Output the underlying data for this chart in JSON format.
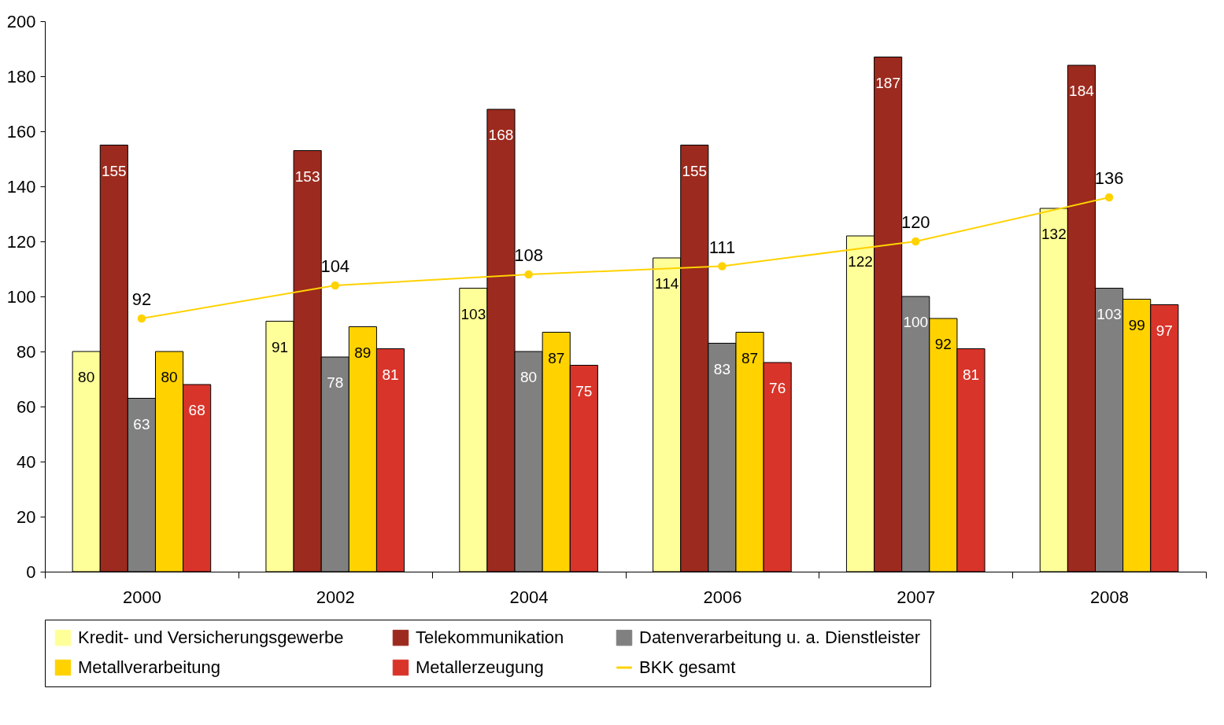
{
  "chart_data": {
    "type": "bar",
    "categories": [
      "2000",
      "2002",
      "2004",
      "2006",
      "2007",
      "2008"
    ],
    "series": [
      {
        "name": "Kredit- und Versicherungsgewerbe",
        "color": "#ffff99",
        "values": [
          80,
          91,
          103,
          114,
          122,
          132
        ]
      },
      {
        "name": "Telekommunikation",
        "color": "#9c2a1e",
        "values": [
          155,
          153,
          168,
          155,
          187,
          184
        ]
      },
      {
        "name": "Datenverarbeitung u. a. Dienstleister",
        "color": "#808080",
        "values": [
          63,
          78,
          80,
          83,
          100,
          103
        ]
      },
      {
        "name": "Metallverarbeitung",
        "color": "#ffd200",
        "values": [
          80,
          89,
          87,
          87,
          92,
          99
        ]
      },
      {
        "name": "Metallerzeugung",
        "color": "#d8342a",
        "values": [
          68,
          81,
          75,
          76,
          81,
          97
        ]
      },
      {
        "name": "BKK gesamt",
        "type": "line",
        "color": "#ffd200",
        "values": [
          92,
          104,
          108,
          111,
          120,
          136
        ]
      }
    ],
    "ylim": [
      0,
      200
    ],
    "yticks": [
      0,
      20,
      40,
      60,
      80,
      100,
      120,
      140,
      160,
      180,
      200
    ],
    "data_labels": true,
    "legend": "bottom",
    "grid": false,
    "marker": "circle"
  }
}
